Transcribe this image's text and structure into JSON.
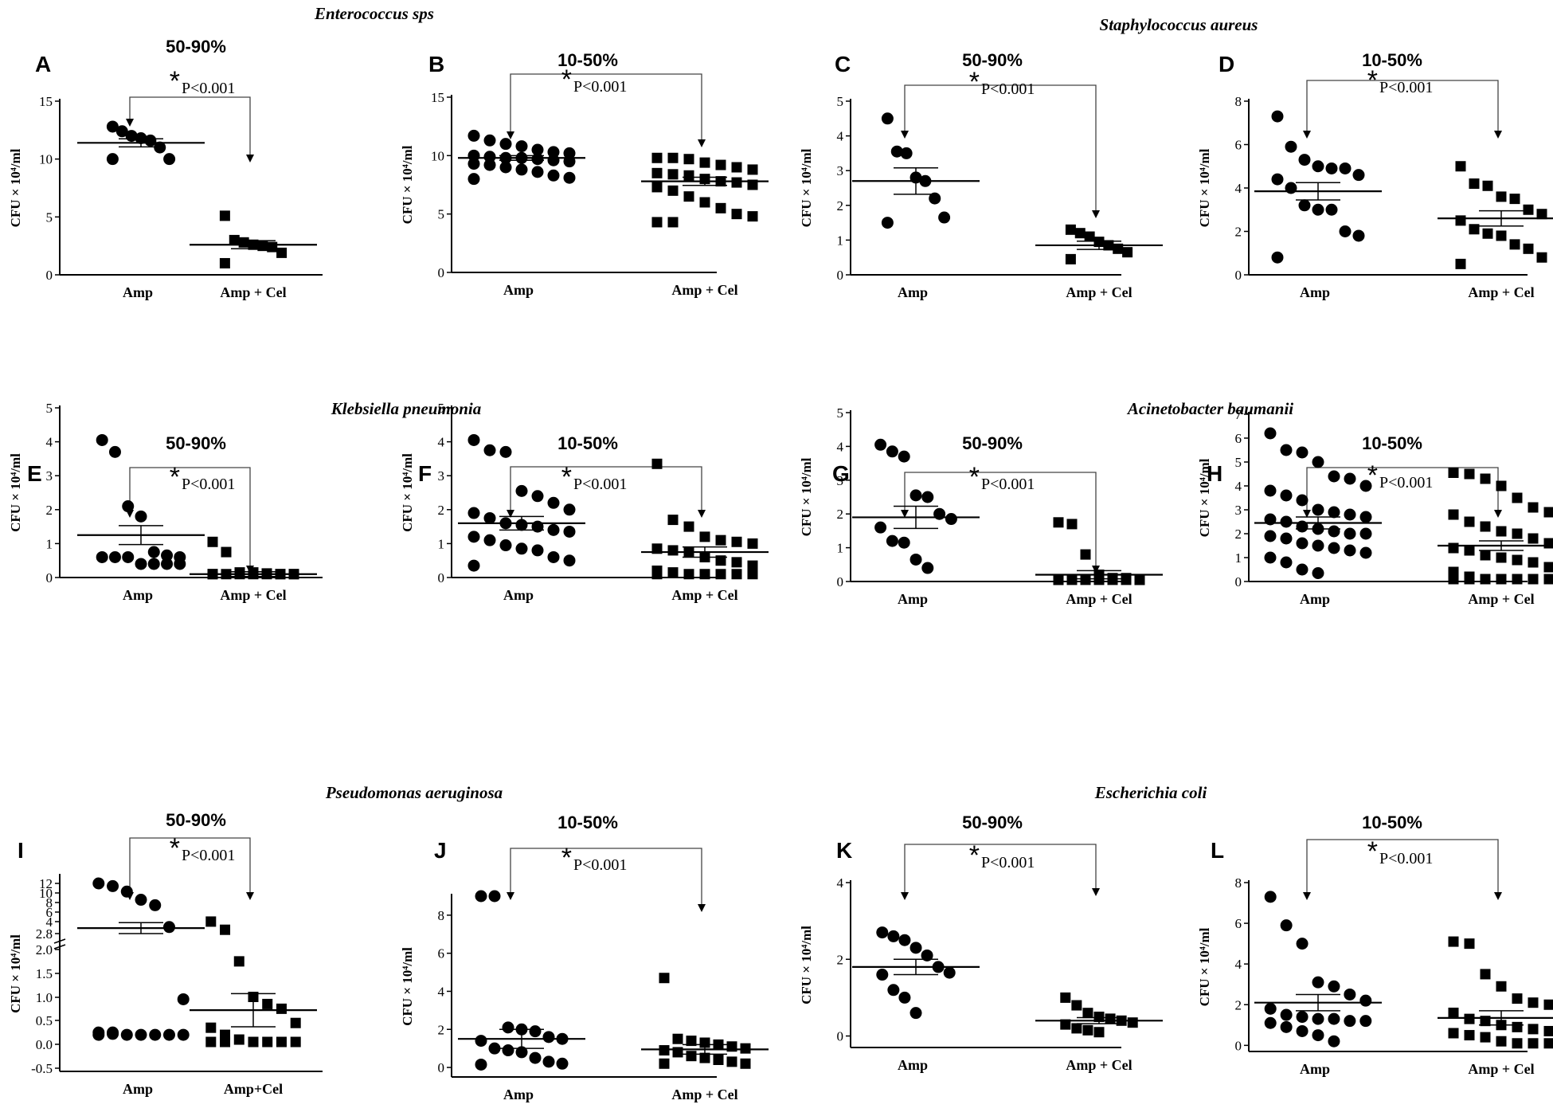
{
  "groups": [
    {
      "name": "Enterococcus sps"
    },
    {
      "name": "Staphylococcus aureus"
    },
    {
      "name": "Klebsiella pneumonia"
    },
    {
      "name": "Acinetobacter baumanii"
    },
    {
      "name": "Pseudomonas aeruginosa"
    },
    {
      "name": "Escherichia coli"
    }
  ],
  "chart_data": [
    {
      "panel": "A",
      "title": "50-90%",
      "type": "scatter",
      "ylabel": "CFU × 10⁴/ml",
      "categories": [
        "Amp",
        "Amp + Cel"
      ],
      "ylim": [
        0,
        15
      ],
      "yticks": [
        0,
        5,
        10,
        15
      ],
      "pvalue": "P<0.001",
      "star": "*",
      "series": [
        {
          "name": "Amp",
          "marker": "circle",
          "mean": 11.4,
          "sem": 0.35,
          "values": [
            12.8,
            12.4,
            12.0,
            11.8,
            11.6,
            11.0,
            10.0,
            10.0
          ]
        },
        {
          "name": "Amp + Cel",
          "marker": "square",
          "mean": 2.6,
          "sem": 0.35,
          "values": [
            5.1,
            3.0,
            2.8,
            2.6,
            2.5,
            2.4,
            1.9,
            1.0
          ]
        }
      ]
    },
    {
      "panel": "B",
      "title": "10-50%",
      "type": "scatter",
      "ylabel": "CFU × 10⁴/ml",
      "categories": [
        "Amp",
        "Amp + Cel"
      ],
      "ylim": [
        0,
        15
      ],
      "yticks": [
        0,
        5,
        10,
        15
      ],
      "pvalue": "P<0.001",
      "star": "*",
      "series": [
        {
          "name": "Amp",
          "marker": "circle",
          "mean": 9.8,
          "sem": 0.2,
          "values": [
            11.7,
            11.3,
            11.0,
            10.8,
            10.5,
            10.3,
            10.2,
            10.0,
            9.9,
            9.8,
            9.8,
            9.7,
            9.6,
            9.5,
            9.3,
            9.2,
            9.0,
            8.8,
            8.6,
            8.3,
            8.1,
            8.0
          ]
        },
        {
          "name": "Amp + Cel",
          "marker": "square",
          "mean": 7.8,
          "sem": 0.35,
          "values": [
            9.8,
            9.8,
            9.7,
            9.4,
            9.2,
            9.0,
            8.8,
            8.5,
            8.4,
            8.3,
            8.0,
            7.8,
            7.7,
            7.5,
            7.3,
            7.0,
            6.5,
            6.0,
            5.5,
            5.0,
            4.8,
            4.3,
            4.3
          ]
        }
      ]
    },
    {
      "panel": "C",
      "title": "50-90%",
      "type": "scatter",
      "ylabel": "CFU × 10⁴/ml",
      "categories": [
        "Amp",
        "Amp + Cel"
      ],
      "ylim": [
        0,
        5
      ],
      "yticks": [
        0,
        1,
        2,
        3,
        4,
        5
      ],
      "pvalue": "P<0.001",
      "star": "*",
      "series": [
        {
          "name": "Amp",
          "marker": "circle",
          "mean": 2.7,
          "sem": 0.38,
          "values": [
            4.5,
            3.55,
            3.5,
            2.8,
            2.7,
            2.2,
            1.65,
            1.5
          ]
        },
        {
          "name": "Amp + Cel",
          "marker": "square",
          "mean": 0.85,
          "sem": 0.12,
          "values": [
            1.3,
            1.2,
            1.1,
            0.95,
            0.85,
            0.75,
            0.65,
            0.45
          ]
        }
      ]
    },
    {
      "panel": "D",
      "title": "10-50%",
      "type": "scatter",
      "ylabel": "CFU × 10⁴/ml",
      "categories": [
        "Amp",
        "Amp + Cel"
      ],
      "ylim": [
        0,
        8
      ],
      "yticks": [
        0,
        2,
        4,
        6,
        8
      ],
      "pvalue": "P<0.001",
      "star": "*",
      "series": [
        {
          "name": "Amp",
          "marker": "circle",
          "mean": 3.85,
          "sem": 0.4,
          "values": [
            7.3,
            5.9,
            5.3,
            5.0,
            4.9,
            4.9,
            4.6,
            4.4,
            4.0,
            3.2,
            3.0,
            3.0,
            2.0,
            1.8,
            0.8
          ]
        },
        {
          "name": "Amp + Cel",
          "marker": "square",
          "mean": 2.6,
          "sem": 0.35,
          "values": [
            5.0,
            4.2,
            4.1,
            3.6,
            3.5,
            3.0,
            2.8,
            2.5,
            2.1,
            1.9,
            1.8,
            1.4,
            1.2,
            0.8,
            0.5
          ]
        }
      ]
    },
    {
      "panel": "E",
      "title": "50-90%",
      "type": "scatter",
      "ylabel": "CFU × 10⁴/ml",
      "categories": [
        "Amp",
        "Amp + Cel"
      ],
      "ylim": [
        0,
        5
      ],
      "yticks": [
        0,
        1,
        2,
        3,
        4,
        5
      ],
      "pvalue": "P<0.001",
      "star": "*",
      "series": [
        {
          "name": "Amp",
          "marker": "circle",
          "mean": 1.25,
          "sem": 0.28,
          "values": [
            4.05,
            3.7,
            2.1,
            1.8,
            0.75,
            0.65,
            0.6,
            0.6,
            0.6,
            0.6,
            0.4,
            0.4,
            0.4,
            0.4
          ]
        },
        {
          "name": "Amp + Cel",
          "marker": "square",
          "mean": 0.1,
          "sem": 0.07,
          "values": [
            1.05,
            0.75,
            0.15,
            0.15,
            0.12,
            0.1,
            0.1,
            0.1,
            0.1,
            0.1,
            0.1,
            0.1,
            0.1,
            0.1,
            0.1
          ]
        }
      ]
    },
    {
      "panel": "F",
      "title": "10-50%",
      "type": "scatter",
      "ylabel": "CFU × 10⁴/ml",
      "categories": [
        "Amp",
        "Amp + Cel"
      ],
      "ylim": [
        0,
        5
      ],
      "yticks": [
        0,
        1,
        2,
        3,
        4,
        5
      ],
      "pvalue": "P<0.001",
      "star": "*",
      "series": [
        {
          "name": "Amp",
          "marker": "circle",
          "mean": 1.6,
          "sem": 0.2,
          "values": [
            4.05,
            3.75,
            3.7,
            2.55,
            2.4,
            2.2,
            2.0,
            1.9,
            1.75,
            1.6,
            1.55,
            1.5,
            1.4,
            1.35,
            1.2,
            1.1,
            0.95,
            0.85,
            0.8,
            0.6,
            0.5,
            0.35
          ]
        },
        {
          "name": "Amp + Cel",
          "marker": "square",
          "mean": 0.75,
          "sem": 0.15,
          "values": [
            3.35,
            1.7,
            1.5,
            1.2,
            1.1,
            1.05,
            1.0,
            0.85,
            0.8,
            0.75,
            0.6,
            0.5,
            0.45,
            0.35,
            0.2,
            0.15,
            0.1,
            0.1,
            0.1,
            0.1,
            0.1,
            0.1
          ]
        }
      ]
    },
    {
      "panel": "G",
      "title": "50-90%",
      "type": "scatter",
      "ylabel": "CFU × 10⁴/ml",
      "categories": [
        "Amp",
        "Amp + Cel"
      ],
      "ylim": [
        0,
        5
      ],
      "yticks": [
        0,
        1,
        2,
        3,
        4,
        5
      ],
      "pvalue": "P<0.001",
      "star": "*",
      "series": [
        {
          "name": "Amp",
          "marker": "circle",
          "mean": 1.9,
          "sem": 0.33,
          "values": [
            4.05,
            3.85,
            3.7,
            2.55,
            2.5,
            2.0,
            1.85,
            1.6,
            1.2,
            1.15,
            0.65,
            0.4
          ]
        },
        {
          "name": "Amp + Cel",
          "marker": "square",
          "mean": 0.2,
          "sem": 0.12,
          "values": [
            1.75,
            1.7,
            0.8,
            0.2,
            0.1,
            0.1,
            0.05,
            0.05,
            0.05,
            0.05,
            0.05,
            0.05,
            0.05,
            0.05,
            0.05
          ]
        }
      ]
    },
    {
      "panel": "H",
      "title": "10-50%",
      "type": "scatter",
      "ylabel": "CFU × 10⁴/ml",
      "categories": [
        "Amp",
        "Amp + Cel"
      ],
      "ylim": [
        0,
        7
      ],
      "yticks": [
        0,
        1,
        2,
        3,
        4,
        5,
        6,
        7
      ],
      "pvalue": "P<0.001",
      "star": "*",
      "series": [
        {
          "name": "Amp",
          "marker": "circle",
          "mean": 2.45,
          "sem": 0.25,
          "values": [
            6.2,
            5.5,
            5.4,
            5.0,
            4.4,
            4.3,
            4.0,
            3.8,
            3.6,
            3.4,
            3.0,
            2.9,
            2.8,
            2.7,
            2.6,
            2.5,
            2.3,
            2.2,
            2.1,
            2.0,
            2.0,
            1.9,
            1.8,
            1.6,
            1.5,
            1.4,
            1.3,
            1.2,
            1.0,
            0.8,
            0.5,
            0.35
          ]
        },
        {
          "name": "Amp + Cel",
          "marker": "square",
          "mean": 1.5,
          "sem": 0.2,
          "values": [
            4.55,
            4.5,
            4.3,
            4.0,
            3.5,
            3.1,
            2.9,
            2.8,
            2.5,
            2.3,
            2.1,
            2.0,
            1.8,
            1.6,
            1.4,
            1.3,
            1.1,
            1.0,
            0.9,
            0.8,
            0.6,
            0.4,
            0.2,
            0.1,
            0.1,
            0.1,
            0.1,
            0.1,
            0.1,
            0.1
          ]
        }
      ]
    },
    {
      "panel": "I",
      "title": "50-90%",
      "type": "scatter",
      "ylabel": "CFU × 10⁴/ml",
      "categories": [
        "Amp",
        "Amp+Cel"
      ],
      "axis_break": true,
      "yticks": [
        "-0.5",
        "0.0",
        "0.5",
        "1.0",
        "1.5",
        "2.0",
        "2.8",
        "4",
        "6",
        "8",
        "10",
        "12"
      ],
      "pvalue": "P<0.001",
      "star": "*",
      "series": [
        {
          "name": "Amp",
          "marker": "circle",
          "mean": 3.8,
          "sem": 1.0,
          "values": [
            12.0,
            11.5,
            10.5,
            9.0,
            8.0,
            4.0,
            0.95,
            0.25,
            0.22,
            0.2,
            0.2,
            0.2,
            0.2,
            0.2,
            0.2,
            0.25
          ]
        },
        {
          "name": "Amp+Cel",
          "marker": "square",
          "mean": 0.72,
          "sem": 0.35,
          "values": [
            5.0,
            3.5,
            1.75,
            1.0,
            0.85,
            0.75,
            0.45,
            0.35,
            0.2,
            0.1,
            0.05,
            0.05,
            0.05,
            0.05,
            0.05,
            0.05
          ]
        }
      ]
    },
    {
      "panel": "J",
      "title": "10-50%",
      "type": "scatter",
      "ylabel": "CFU × 10⁴/ml",
      "categories": [
        "Amp",
        "Amp + Cel"
      ],
      "ylim": [
        -0.5,
        9
      ],
      "yticks": [
        0,
        2,
        4,
        6,
        8
      ],
      "pvalue": "P<0.001",
      "star": "*",
      "series": [
        {
          "name": "Amp",
          "marker": "circle",
          "mean": 1.5,
          "sem": 0.5,
          "values": [
            9.0,
            9.0,
            2.1,
            2.0,
            1.9,
            1.6,
            1.5,
            1.4,
            1.0,
            0.9,
            0.8,
            0.5,
            0.3,
            0.2,
            0.15
          ]
        },
        {
          "name": "Amp + Cel",
          "marker": "square",
          "mean": 0.95,
          "sem": 0.25,
          "values": [
            4.7,
            1.5,
            1.4,
            1.3,
            1.2,
            1.1,
            1.0,
            0.9,
            0.8,
            0.6,
            0.5,
            0.4,
            0.3,
            0.2,
            0.2
          ]
        }
      ]
    },
    {
      "panel": "K",
      "title": "50-90%",
      "type": "scatter",
      "ylabel": "CFU × 10⁴/ml",
      "categories": [
        "Amp",
        "Amp + Cel"
      ],
      "ylim": [
        -0.3,
        4
      ],
      "yticks": [
        0,
        2,
        4
      ],
      "pvalue": "P<0.001",
      "star": "*",
      "series": [
        {
          "name": "Amp",
          "marker": "circle",
          "mean": 1.8,
          "sem": 0.2,
          "values": [
            2.7,
            2.6,
            2.5,
            2.3,
            2.1,
            1.8,
            1.65,
            1.6,
            1.2,
            1.0,
            0.6
          ]
        },
        {
          "name": "Amp + Cel",
          "marker": "square",
          "mean": 0.4,
          "sem": 0.08,
          "values": [
            1.0,
            0.8,
            0.6,
            0.5,
            0.45,
            0.4,
            0.35,
            0.3,
            0.2,
            0.15,
            0.1
          ]
        }
      ]
    },
    {
      "panel": "L",
      "title": "10-50%",
      "type": "scatter",
      "ylabel": "CFU × 10⁴/ml",
      "categories": [
        "Amp",
        "Amp + Cel"
      ],
      "ylim": [
        -0.3,
        8
      ],
      "yticks": [
        0,
        2,
        4,
        6,
        8
      ],
      "pvalue": "P<0.001",
      "star": "*",
      "series": [
        {
          "name": "Amp",
          "marker": "circle",
          "mean": 2.1,
          "sem": 0.4,
          "values": [
            7.3,
            5.9,
            5.0,
            3.1,
            2.9,
            2.5,
            2.2,
            1.8,
            1.5,
            1.4,
            1.3,
            1.3,
            1.2,
            1.2,
            1.1,
            0.9,
            0.7,
            0.5,
            0.2
          ]
        },
        {
          "name": "Amp + Cel",
          "marker": "square",
          "mean": 1.35,
          "sem": 0.35,
          "values": [
            5.1,
            5.0,
            3.5,
            2.9,
            2.3,
            2.1,
            2.0,
            1.6,
            1.3,
            1.2,
            1.0,
            0.9,
            0.8,
            0.7,
            0.6,
            0.5,
            0.4,
            0.2,
            0.1,
            0.1,
            0.1
          ]
        }
      ]
    }
  ]
}
